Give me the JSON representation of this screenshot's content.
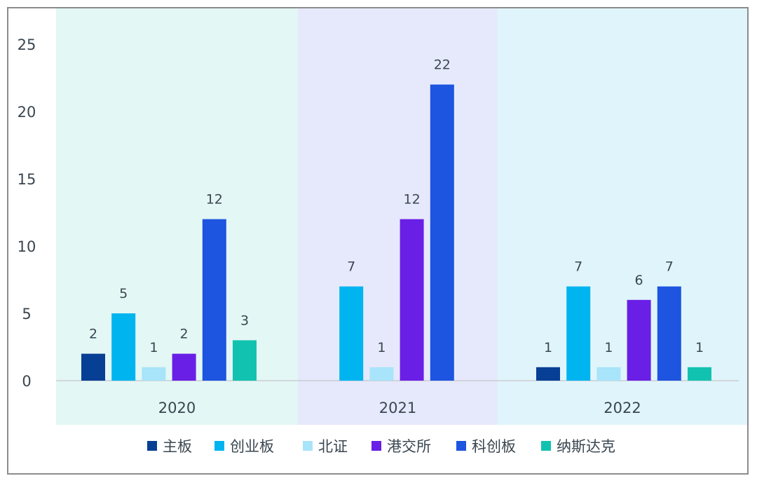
{
  "chart_data": {
    "type": "bar",
    "categories": [
      "2020",
      "2021",
      "2022"
    ],
    "series": [
      {
        "name": "主板",
        "color": "#073f94",
        "values": [
          2,
          0,
          1
        ]
      },
      {
        "name": "创业板",
        "color": "#00b4f0",
        "values": [
          5,
          7,
          7
        ]
      },
      {
        "name": "北证",
        "color": "#a8e4fa",
        "values": [
          1,
          1,
          1
        ]
      },
      {
        "name": "港交所",
        "color": "#6a1fe6",
        "values": [
          2,
          12,
          6
        ]
      },
      {
        "name": "科创板",
        "color": "#1d54e0",
        "values": [
          12,
          22,
          7
        ]
      },
      {
        "name": "纳斯达克",
        "color": "#12c2b0",
        "values": [
          3,
          0,
          1
        ]
      }
    ],
    "ylim": [
      0,
      25
    ],
    "yticks": [
      0,
      5,
      10,
      15,
      20,
      25
    ],
    "group_backgrounds": [
      "#e3f7f4",
      "#e6e9fb",
      "#e0f5fb"
    ],
    "legend_position": "bottom"
  }
}
